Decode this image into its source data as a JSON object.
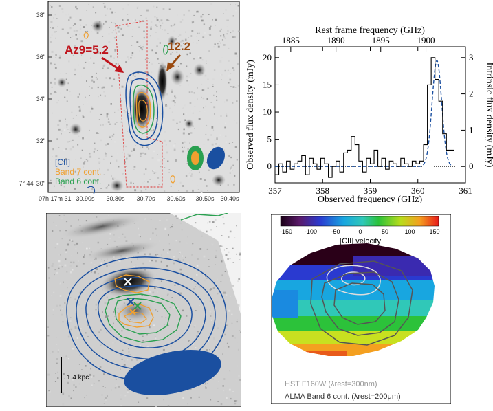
{
  "panel_a": {
    "dec_ticks": [
      "38\"",
      "36\"",
      "34\"",
      "32\"",
      "7° 44' 30\""
    ],
    "ra_prefix": "07h 17m 31",
    "ra_ticks": [
      "30.90s",
      "30.80s",
      "30.70s",
      "30.60s",
      "30.50s",
      "30.40s"
    ],
    "label_az9": "Az9=5.2",
    "label_122": "12.2",
    "legend": [
      "[CII]",
      "Band 7 cont.",
      "Band 6 cont."
    ],
    "colors": {
      "cii": "#1a4fa0",
      "band7": "#f0a030",
      "band6": "#2aa050",
      "az9": "#c0141c",
      "arrow122": "#9a4a10"
    }
  },
  "chart_data": {
    "type": "line",
    "title": "",
    "xlabel": "Observed frequency (GHz)",
    "ylabel": "Observed flux density (mJy)",
    "top_xlabel": "Rest frame frequency (GHz)",
    "right_ylabel": "Intrinsic flux density (mJy)",
    "xlim": [
      357,
      361
    ],
    "ylim": [
      -3,
      22
    ],
    "x_ticks": [
      "357",
      "358",
      "359",
      "360",
      "361"
    ],
    "y_ticks": [
      "0",
      "5",
      "10",
      "15",
      "20"
    ],
    "top_ticks": [
      "1885",
      "1890",
      "1895",
      "1900"
    ],
    "top_tick_positions_ghz": [
      357.33,
      358.28,
      359.22,
      360.17
    ],
    "right_ticks": [
      "0",
      "1",
      "2",
      "3"
    ],
    "right_scale_mjy_per_unit": 6.67,
    "series": [
      {
        "name": "observed",
        "style": "steps",
        "x": [
          357.0,
          357.08,
          357.16,
          357.24,
          357.32,
          357.4,
          357.48,
          357.56,
          357.64,
          357.72,
          357.8,
          357.88,
          357.96,
          358.04,
          358.12,
          358.2,
          358.28,
          358.36,
          358.44,
          358.52,
          358.6,
          358.68,
          358.76,
          358.84,
          358.92,
          359.0,
          359.08,
          359.16,
          359.24,
          359.32,
          359.4,
          359.48,
          359.56,
          359.64,
          359.72,
          359.8,
          359.88,
          359.96,
          360.04,
          360.12,
          360.2,
          360.28,
          360.36,
          360.44,
          360.52,
          360.6,
          360.68
        ],
        "y": [
          -1.5,
          0.5,
          -1,
          1,
          -0.5,
          0.5,
          1,
          2,
          -1.5,
          1.5,
          0.5,
          -0.5,
          1.5,
          0.5,
          -2,
          0,
          1,
          -1,
          2.5,
          3,
          5.5,
          4,
          1,
          -1,
          1.5,
          0.5,
          3,
          0,
          1.5,
          -0.5,
          1,
          0.5,
          0,
          1.5,
          0.5,
          0,
          1,
          0.5,
          1,
          4,
          15,
          20,
          16,
          12,
          6,
          3,
          3
        ]
      },
      {
        "name": "gaussian fit",
        "style": "dashed",
        "center": 360.4,
        "amplitude": 19.5,
        "sigma": 0.1
      }
    ]
  },
  "panel_c": {
    "scale_label": "1.4 kpc",
    "colors": {
      "cii": "#1a4fa0",
      "band6": "#2aa050",
      "band7": "#f0a030",
      "beam": "#1a4fa0"
    }
  },
  "panel_d": {
    "colorbar_ticks": [
      "-150",
      "-100",
      "-50",
      "0",
      "50",
      "100",
      "150"
    ],
    "colorbar_label": "[CII] velocity",
    "legend_hst": "HST F160W (λrest=300nm)",
    "legend_alma": "ALMA Band 6 cont. (λrest=200μm)"
  }
}
